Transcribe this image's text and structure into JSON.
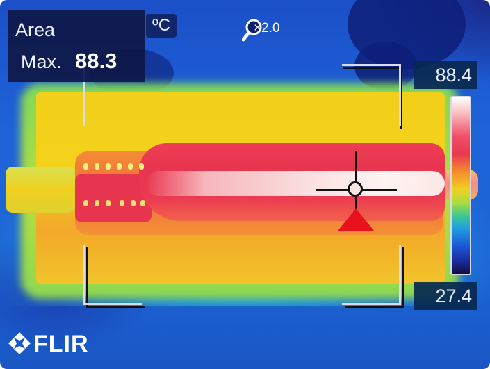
{
  "overlay": {
    "area_title": "Area",
    "max_label": "Max.",
    "max_value": "88.3",
    "unit": "ºC",
    "zoom": "×2.0"
  },
  "scale": {
    "max": "88.4",
    "min": "27.4"
  },
  "brand": {
    "logo_text": "FLIR"
  },
  "colors": {
    "hot_spot_marker": "#e8121e",
    "overlay_panel": "#0e1846"
  },
  "icons": {
    "zoom": "magnifier-icon",
    "logo": "flir-logo-icon",
    "hotspot": "triangle-marker-icon",
    "spot_meter": "crosshair-icon"
  }
}
